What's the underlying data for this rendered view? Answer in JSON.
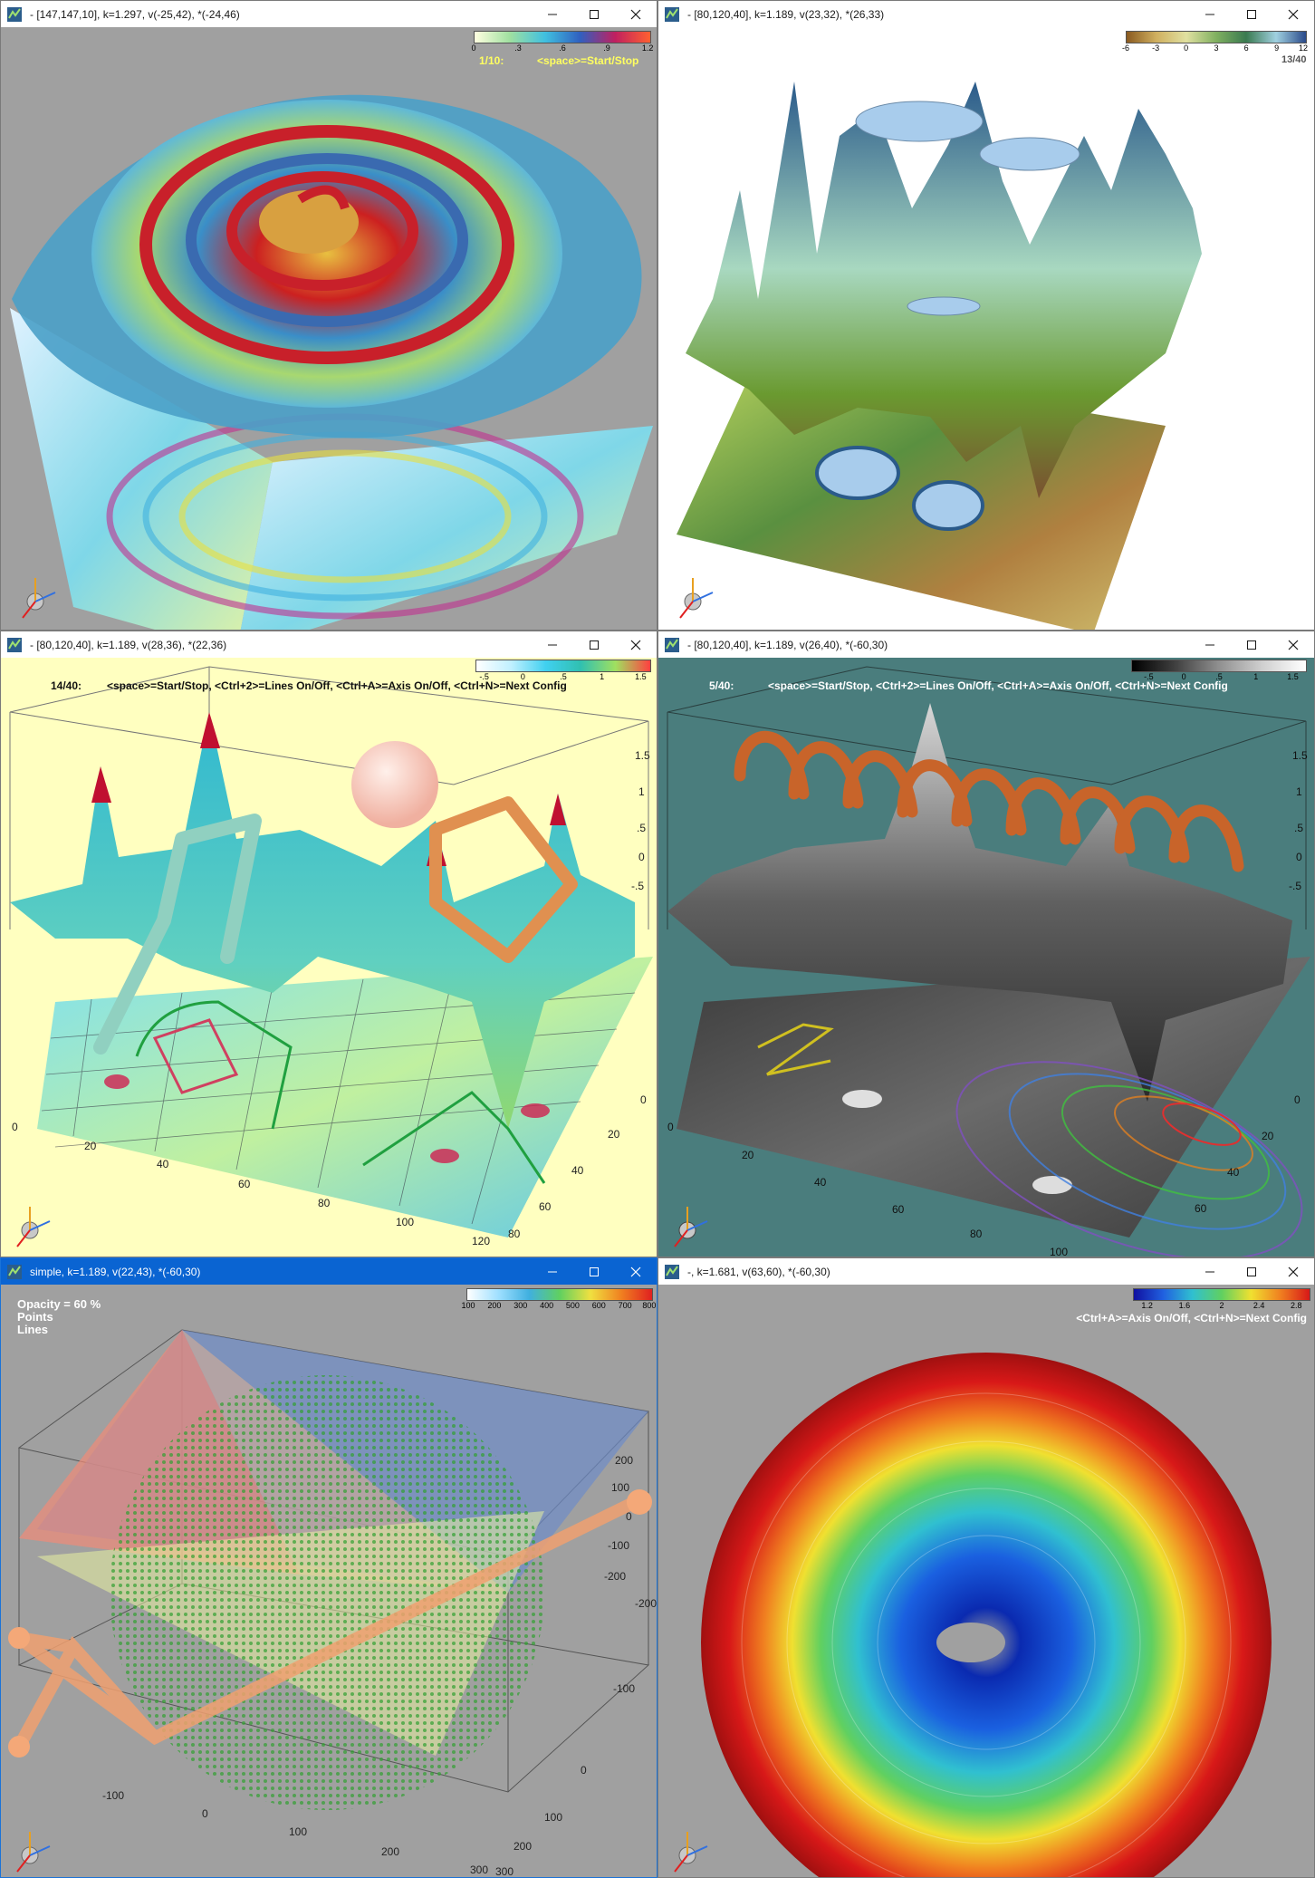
{
  "windows": [
    {
      "title": "- [147,147,10], k=1.297, v(-25,42), *(-24,46)",
      "colorbar": [
        "0",
        ".3",
        ".6",
        ".9",
        "1.2"
      ],
      "overlay": [
        "1/10:",
        "<space>=Start/Stop"
      ]
    },
    {
      "title": "- [80,120,40], k=1.189, v(23,32), *(26,33)",
      "colorbar": [
        "-6",
        "-3",
        "0",
        "3",
        "6",
        "9",
        "12"
      ],
      "overlay": [
        "13/40"
      ]
    },
    {
      "title": "- [80,120,40], k=1.189, v(28,36), *(22,36)",
      "colorbar": [
        "-.5",
        "0",
        ".5",
        "1",
        "1.5"
      ],
      "overlay": [
        "14/40:",
        "<space>=Start/Stop,  <Ctrl+2>=Lines On/Off,  <Ctrl+A>=Axis On/Off,  <Ctrl+N>=Next Config"
      ],
      "axis_labels": [
        "0",
        "20",
        "40",
        "60",
        "80",
        "100",
        "120",
        "0",
        "20",
        "40",
        "60",
        "80",
        "1.5",
        "1",
        ".5",
        "0",
        "-.5"
      ]
    },
    {
      "title": "- [80,120,40], k=1.189, v(26,40), *(-60,30)",
      "colorbar": [
        "-.5",
        "0",
        ".5",
        "1",
        "1.5"
      ],
      "overlay": [
        "5/40:",
        "<space>=Start/Stop,  <Ctrl+2>=Lines On/Off,  <Ctrl+A>=Axis On/Off,  <Ctrl+N>=Next Config"
      ],
      "axis_labels": [
        "0",
        "20",
        "40",
        "60",
        "80",
        "100",
        "0",
        "20",
        "40",
        "60",
        "1.5",
        "1",
        ".5",
        "0",
        "-.5"
      ]
    },
    {
      "title": "simple, k=1.189, v(22,43), *(-60,30)",
      "colorbar": [
        "100",
        "200",
        "300",
        "400",
        "500",
        "600",
        "700",
        "800"
      ],
      "overlay": [
        "Opacity = 60 %",
        "Points",
        "Lines"
      ],
      "axis_labels": [
        "200",
        "100",
        "0",
        "-100",
        "-200",
        "-200",
        "-100",
        "0",
        "100",
        "200",
        "300",
        "-100",
        "0",
        "100",
        "200",
        "300"
      ]
    },
    {
      "title": "-, k=1.681, v(63,60), *(-60,30)",
      "colorbar": [
        "1.2",
        "1.6",
        "2",
        "2.4",
        "2.8"
      ],
      "overlay": [
        "<Ctrl+A>=Axis On/Off,  <Ctrl+N>=Next Config"
      ]
    }
  ],
  "colors": {
    "bg_gray": "#a0a0a0",
    "bg_yellow": "#ffffc0",
    "bg_teal": "#4a7d7d",
    "title_active": "#0a64d2"
  }
}
